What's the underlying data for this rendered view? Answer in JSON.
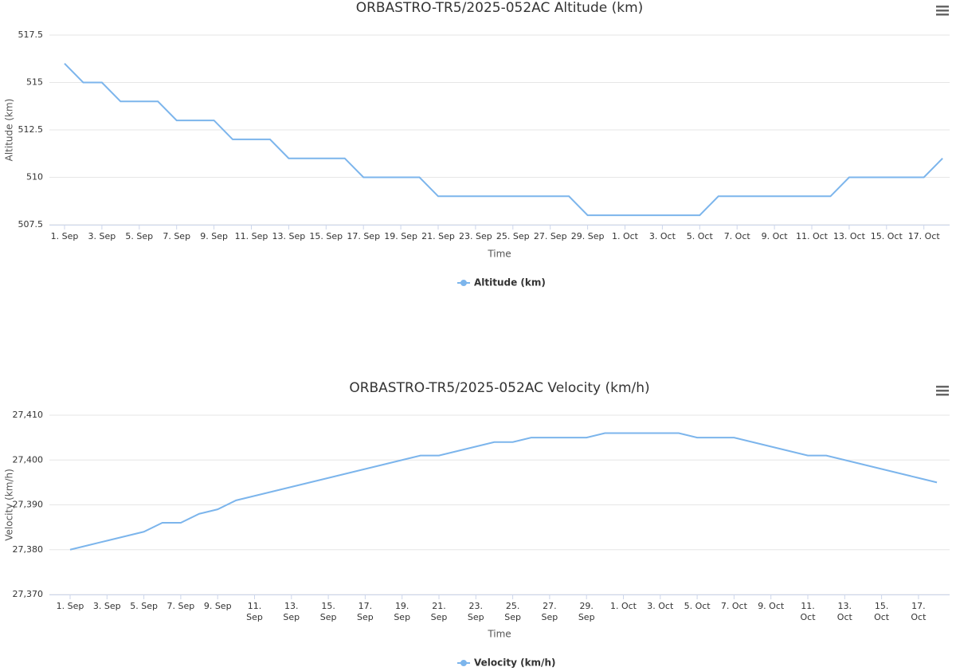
{
  "chart_data": [
    {
      "type": "line",
      "title": "ORBASTRO-TR5/2025-052AC Altitude (km)",
      "x_label": "Time",
      "y_label": "Altitude (km)",
      "categories": [
        "1. Sep",
        null,
        "3. Sep",
        null,
        "5. Sep",
        null,
        "7. Sep",
        null,
        "9. Sep",
        null,
        "11. Sep",
        null,
        "13. Sep",
        null,
        "15. Sep",
        null,
        "17. Sep",
        null,
        "19. Sep",
        null,
        "21. Sep",
        null,
        "23. Sep",
        null,
        "25. Sep",
        null,
        "27. Sep",
        null,
        "29. Sep",
        null,
        "1. Oct",
        null,
        "3. Oct",
        null,
        "5. Oct",
        null,
        "7. Oct",
        null,
        "9. Oct",
        null,
        "11. Oct",
        null,
        "13. Oct",
        null,
        "15. Oct",
        null,
        "17. Oct",
        null
      ],
      "series": [
        {
          "name": "Altitude (km)",
          "color": "#7cb5ec",
          "values": [
            516,
            515,
            515,
            514,
            514,
            514,
            513,
            513,
            513,
            512,
            512,
            512,
            511,
            511,
            511,
            511,
            510,
            510,
            510,
            510,
            509,
            509,
            509,
            509,
            509,
            509,
            509,
            509,
            508,
            508,
            508,
            508,
            508,
            508,
            508,
            509,
            509,
            509,
            509,
            509,
            509,
            509,
            510,
            510,
            510,
            510,
            510,
            511
          ]
        }
      ],
      "ylim": [
        507.5,
        517.5
      ],
      "yticks": [
        507.5,
        510,
        512.5,
        515,
        517.5
      ],
      "grid": true,
      "legend": "bottom"
    },
    {
      "type": "line",
      "title": "ORBASTRO-TR5/2025-052AC Velocity (km/h)",
      "x_label": "Time",
      "y_label": "Velocity (km/h)",
      "categories": [
        "1. Sep",
        null,
        "3. Sep",
        null,
        "5. Sep",
        null,
        "7. Sep",
        null,
        "9. Sep",
        null,
        "11. Sep",
        null,
        "13. Sep",
        null,
        "15. Sep",
        null,
        "17. Sep",
        null,
        "19. Sep",
        null,
        "21. Sep",
        null,
        "23. Sep",
        null,
        "25. Sep",
        null,
        "27. Sep",
        null,
        "29. Sep",
        null,
        "1. Oct",
        null,
        "3. Oct",
        null,
        "5. Oct",
        null,
        "7. Oct",
        null,
        "9. Oct",
        null,
        "11. Oct",
        null,
        "13. Oct",
        null,
        "15. Oct",
        null,
        "17. Oct",
        null
      ],
      "series": [
        {
          "name": "Velocity (km/h)",
          "color": "#7cb5ec",
          "values": [
            27380,
            27381,
            27382,
            27383,
            27384,
            27386,
            27386,
            27388,
            27389,
            27391,
            27392,
            27393,
            27394,
            27395,
            27396,
            27397,
            27398,
            27399,
            27400,
            27401,
            27401,
            27402,
            27403,
            27404,
            27404,
            27405,
            27405,
            27405,
            27405,
            27406,
            27406,
            27406,
            27406,
            27406,
            27405,
            27405,
            27405,
            27404,
            27403,
            27402,
            27401,
            27401,
            27400,
            27399,
            27398,
            27397,
            27396,
            27395
          ]
        }
      ],
      "ylim": [
        27370,
        27410
      ],
      "yticks": [
        {
          "value": 27370,
          "label": "27,370"
        },
        {
          "value": 27380,
          "label": "27,380"
        },
        {
          "value": 27390,
          "label": "27,390"
        },
        {
          "value": 27400,
          "label": "27,400"
        },
        {
          "value": 27410,
          "label": "27,410"
        }
      ],
      "grid": true,
      "legend": "bottom"
    }
  ]
}
